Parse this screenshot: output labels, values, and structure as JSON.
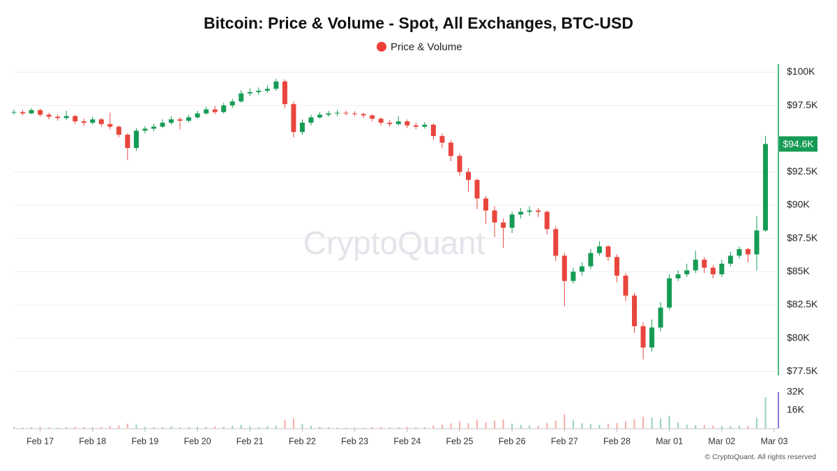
{
  "chart_data": {
    "type": "candlestick",
    "title": "Bitcoin: Price & Volume - Spot, All Exchanges, BTC-USD",
    "watermark": "CryptoQuant",
    "footer": "© CryptoQuant. All rights reserved",
    "grid": true,
    "series": [
      {
        "name": "Price & Volume",
        "color": "#ef3e36",
        "up_color": "#169b55",
        "down_color": "#e8453c",
        "open": [
          96950,
          97000,
          96900,
          97150,
          96800,
          96650,
          96550,
          96700,
          96300,
          96200,
          96450,
          96100,
          95900,
          95300,
          94300,
          95600,
          95750,
          95900,
          96200,
          96450,
          96350,
          96600,
          96900,
          97200,
          97000,
          97500,
          97800,
          98400,
          98500,
          98600,
          98750,
          99300,
          97600,
          95500,
          96200,
          96600,
          96800,
          96900,
          96950,
          96900,
          96850,
          96750,
          96500,
          96200,
          96100,
          96300,
          96000,
          95900,
          96050,
          95200,
          94700,
          93700,
          92500,
          91900,
          90500,
          89600,
          88700,
          88300,
          89300,
          89500,
          89600,
          89500,
          88200,
          86200,
          84300,
          85000,
          85400,
          86400,
          86900,
          86100,
          84700,
          83200,
          80900,
          79300,
          80800,
          82300,
          84500,
          84800,
          85100,
          85900,
          85300,
          84800,
          85600,
          86200,
          86700,
          86300,
          88100
        ],
        "high": [
          97200,
          97150,
          97300,
          97250,
          96950,
          96800,
          97100,
          96800,
          96500,
          96650,
          96550,
          96950,
          96000,
          95400,
          95800,
          95950,
          96100,
          96450,
          96700,
          96600,
          96800,
          97100,
          97400,
          97450,
          97700,
          98000,
          98650,
          98800,
          98850,
          99000,
          99500,
          99450,
          97800,
          96450,
          96800,
          97000,
          97100,
          97150,
          97100,
          97050,
          96950,
          96850,
          96600,
          96400,
          96700,
          96450,
          96200,
          96250,
          96150,
          95400,
          94900,
          93900,
          92800,
          92000,
          90700,
          89900,
          89000,
          89500,
          89800,
          89900,
          89800,
          89600,
          88400,
          86400,
          85300,
          85700,
          86700,
          87300,
          87000,
          86300,
          84900,
          83400,
          81200,
          81400,
          82700,
          84800,
          85100,
          85600,
          86600,
          86100,
          85500,
          85900,
          86500,
          86900,
          86800,
          89200,
          95200
        ],
        "low": [
          96800,
          96750,
          96850,
          96650,
          96450,
          96350,
          96400,
          96100,
          95950,
          96050,
          95900,
          95700,
          95100,
          93400,
          94100,
          95400,
          95550,
          95800,
          96050,
          95700,
          96200,
          96500,
          96800,
          96850,
          96900,
          97300,
          97700,
          98200,
          98300,
          98450,
          98600,
          97300,
          95100,
          95300,
          96000,
          96500,
          96650,
          96700,
          96750,
          96700,
          96550,
          96300,
          96000,
          95900,
          96000,
          95800,
          95700,
          95750,
          94900,
          94300,
          93300,
          92200,
          91000,
          89700,
          88600,
          87600,
          86800,
          87900,
          89000,
          89200,
          89100,
          87800,
          85800,
          82400,
          84100,
          84700,
          85200,
          86200,
          85800,
          84200,
          82800,
          80400,
          78400,
          79000,
          80500,
          82100,
          84300,
          84600,
          84900,
          84900,
          84500,
          84600,
          85400,
          86000,
          85700,
          85100,
          88000
        ],
        "close": [
          97000,
          96900,
          97150,
          96800,
          96650,
          96550,
          96700,
          96300,
          96200,
          96450,
          96100,
          95900,
          95300,
          94300,
          95600,
          95750,
          95900,
          96200,
          96450,
          96350,
          96600,
          96900,
          97200,
          97000,
          97500,
          97800,
          98400,
          98500,
          98600,
          98750,
          99300,
          97600,
          95500,
          96200,
          96600,
          96800,
          96900,
          96950,
          96900,
          96850,
          96750,
          96500,
          96200,
          96100,
          96300,
          96000,
          95900,
          96050,
          95200,
          94700,
          93700,
          92500,
          91900,
          90500,
          89600,
          88700,
          88300,
          89300,
          89500,
          89600,
          89500,
          88200,
          86200,
          84300,
          85000,
          85400,
          86400,
          86900,
          86100,
          84700,
          83200,
          80900,
          79300,
          80800,
          82300,
          84500,
          84800,
          85100,
          85900,
          85300,
          84800,
          85600,
          86200,
          86700,
          86300,
          88100,
          94600
        ],
        "volume": [
          1200,
          900,
          1100,
          1500,
          1000,
          900,
          1300,
          1700,
          1200,
          1000,
          1600,
          2200,
          2800,
          4200,
          3300,
          1500,
          1200,
          1400,
          1800,
          1100,
          1300,
          1600,
          1400,
          1900,
          1500,
          2300,
          3100,
          1800,
          1500,
          2000,
          2600,
          7500,
          9000,
          4100,
          2200,
          1500,
          1100,
          900,
          800,
          900,
          800,
          1200,
          1400,
          1000,
          1100,
          1500,
          1300,
          1100,
          2600,
          3400,
          4500,
          6200,
          4700,
          7600,
          5300,
          6800,
          7900,
          4300,
          3100,
          2600,
          2200,
          4700,
          6900,
          12500,
          7200,
          4600,
          3900,
          3200,
          4100,
          4800,
          6200,
          8100,
          10300,
          9500,
          8800,
          11200,
          5200,
          3400,
          2800,
          3100,
          2400,
          2100,
          1900,
          2600,
          2300,
          9200,
          27500
        ]
      }
    ],
    "xlim": [
      0,
      87.4
    ],
    "xticks": [
      {
        "value": 3,
        "label": "Feb 17"
      },
      {
        "value": 9,
        "label": "Feb 18"
      },
      {
        "value": 15,
        "label": "Feb 19"
      },
      {
        "value": 21,
        "label": "Feb 20"
      },
      {
        "value": 27,
        "label": "Feb 21"
      },
      {
        "value": 33,
        "label": "Feb 22"
      },
      {
        "value": 39,
        "label": "Feb 23"
      },
      {
        "value": 45,
        "label": "Feb 24"
      },
      {
        "value": 51,
        "label": "Feb 25"
      },
      {
        "value": 57,
        "label": "Feb 26"
      },
      {
        "value": 63,
        "label": "Feb 27"
      },
      {
        "value": 69,
        "label": "Feb 28"
      },
      {
        "value": 75,
        "label": "Mar 01"
      },
      {
        "value": 81,
        "label": "Mar 02"
      },
      {
        "value": 87,
        "label": "Mar 03"
      }
    ],
    "ylim": [
      77200,
      100600
    ],
    "yticks": [
      {
        "value": 77500,
        "label": "$77.5K"
      },
      {
        "value": 80000,
        "label": "$80K"
      },
      {
        "value": 82500,
        "label": "$82.5K"
      },
      {
        "value": 85000,
        "label": "$85K"
      },
      {
        "value": 87500,
        "label": "$87.5K"
      },
      {
        "value": 90000,
        "label": "$90K"
      },
      {
        "value": 92500,
        "label": "$92.5K"
      },
      {
        "value": 97500,
        "label": "$97.5K"
      },
      {
        "value": 100000,
        "label": "$100K"
      }
    ],
    "last_price": {
      "value": 94600,
      "label": "$94.6K"
    },
    "y2lim": [
      0,
      32000
    ],
    "y2ticks": [
      {
        "value": 16000,
        "label": "16K"
      },
      {
        "value": 32000,
        "label": "32K"
      }
    ]
  }
}
